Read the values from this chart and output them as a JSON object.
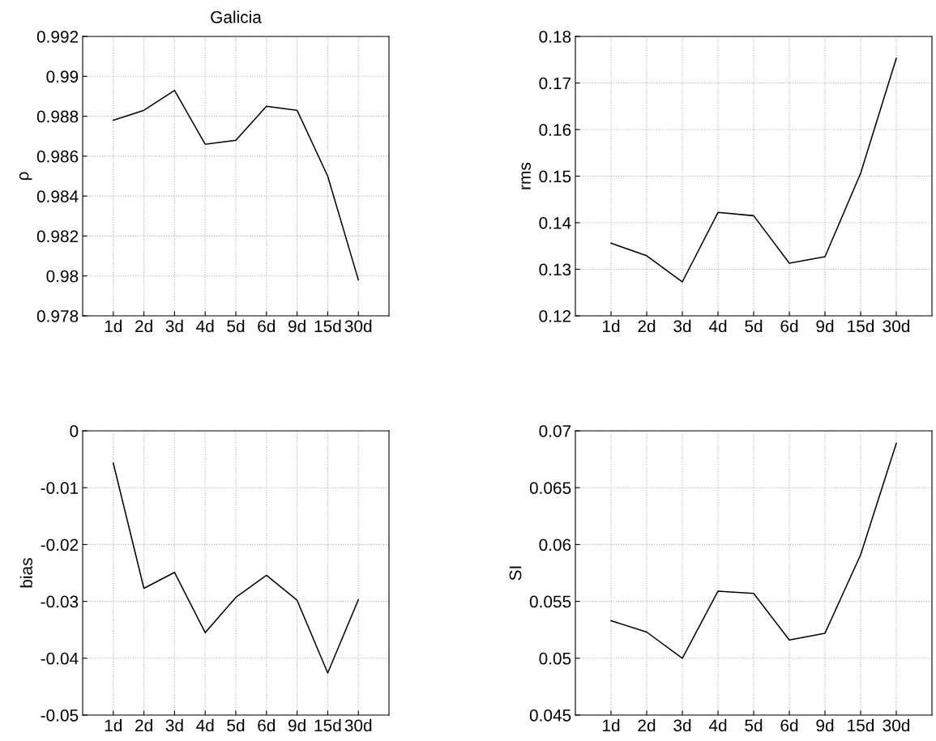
{
  "chart_data": [
    {
      "type": "line",
      "title": "Galicia",
      "ylabel": "ρ",
      "categories": [
        "1d",
        "2d",
        "3d",
        "4d",
        "5d",
        "6d",
        "9d",
        "15d",
        "30d"
      ],
      "series": [
        {
          "color": "#000000",
          "values": [
            0.9878,
            0.9883,
            0.9893,
            0.9866,
            0.9868,
            0.9885,
            0.9883,
            0.985,
            0.9798
          ]
        }
      ],
      "ylim": [
        0.978,
        0.992
      ],
      "yticks": [
        0.978,
        0.98,
        0.982,
        0.984,
        0.986,
        0.988,
        0.99,
        0.992
      ],
      "grid": true,
      "marker": "none",
      "line_style": "solid"
    },
    {
      "type": "line",
      "ylabel": "rms",
      "categories": [
        "1d",
        "2d",
        "3d",
        "4d",
        "5d",
        "6d",
        "9d",
        "15d",
        "30d"
      ],
      "series": [
        {
          "color": "#000000",
          "values": [
            0.1356,
            0.1329,
            0.1273,
            0.1422,
            0.1415,
            0.1313,
            0.1327,
            0.1506,
            0.1753
          ]
        }
      ],
      "ylim": [
        0.12,
        0.18
      ],
      "yticks": [
        0.12,
        0.13,
        0.14,
        0.15,
        0.16,
        0.17,
        0.18
      ],
      "grid": true,
      "marker": "none",
      "line_style": "solid"
    },
    {
      "type": "line",
      "ylabel": "bias",
      "categories": [
        "1d",
        "2d",
        "3d",
        "4d",
        "5d",
        "6d",
        "9d",
        "15d",
        "30d"
      ],
      "series": [
        {
          "color": "#000000",
          "values": [
            -0.0057,
            -0.0277,
            -0.0249,
            -0.0355,
            -0.0293,
            -0.0254,
            -0.0298,
            -0.0426,
            -0.0297
          ]
        }
      ],
      "ylim": [
        -0.05,
        0
      ],
      "yticks": [
        -0.05,
        -0.04,
        -0.03,
        -0.02,
        -0.01,
        0
      ],
      "grid": true,
      "marker": "none",
      "line_style": "solid"
    },
    {
      "type": "line",
      "ylabel": "SI",
      "categories": [
        "1d",
        "2d",
        "3d",
        "4d",
        "5d",
        "6d",
        "9d",
        "15d",
        "30d"
      ],
      "series": [
        {
          "color": "#000000",
          "values": [
            0.0533,
            0.0523,
            0.05,
            0.0559,
            0.0557,
            0.0516,
            0.0522,
            0.0591,
            0.0689
          ]
        }
      ],
      "ylim": [
        0.045,
        0.07
      ],
      "yticks": [
        0.045,
        0.05,
        0.055,
        0.06,
        0.065,
        0.07
      ],
      "grid": true,
      "marker": "none",
      "line_style": "solid"
    }
  ]
}
